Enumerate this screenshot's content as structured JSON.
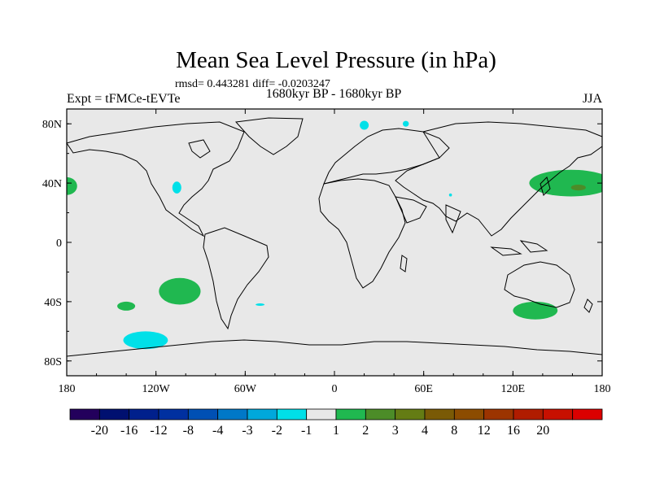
{
  "chart_data": {
    "type": "heatmap",
    "title": "Mean Sea Level Pressure (in hPa)",
    "stats_line": "rmsd= 0.443281 diff= -0.0203247",
    "subtitle": "1680kyr BP - 1680kyr BP",
    "left_label": "Expt = tFMCe-tEVTe",
    "right_label": "JJA",
    "xlim": [
      -180,
      180
    ],
    "ylim": [
      -90,
      90
    ],
    "x_ticks": [
      {
        "value": -180,
        "label": "180"
      },
      {
        "value": -120,
        "label": "120W"
      },
      {
        "value": -60,
        "label": "60W"
      },
      {
        "value": 0,
        "label": "0"
      },
      {
        "value": 60,
        "label": "60E"
      },
      {
        "value": 120,
        "label": "120E"
      },
      {
        "value": 180,
        "label": "180"
      }
    ],
    "y_ticks": [
      {
        "value": 80,
        "label": "80N"
      },
      {
        "value": 40,
        "label": "40N"
      },
      {
        "value": 0,
        "label": "0"
      },
      {
        "value": -40,
        "label": "40S"
      },
      {
        "value": -80,
        "label": "80S"
      }
    ],
    "colorbar": {
      "colors": [
        "#23005c",
        "#001070",
        "#00208c",
        "#0030a0",
        "#0050b4",
        "#0078c8",
        "#00a8dc",
        "#00e0e8",
        "#e8e8e8",
        "#20b850",
        "#4c8c28",
        "#647c14",
        "#7a5a06",
        "#8c4c00",
        "#9c3400",
        "#b01c00",
        "#c81000",
        "#dc0000"
      ],
      "labels": [
        "-20",
        "-16",
        "-12",
        "-8",
        "-4",
        "-3",
        "-2",
        "-1",
        "1",
        "2",
        "3",
        "4",
        "8",
        "12",
        "16",
        "20"
      ],
      "label_gaps": [
        1,
        2,
        3,
        4,
        5,
        6,
        7,
        8,
        9,
        10,
        11,
        12,
        13,
        14,
        15,
        16
      ]
    },
    "regions": [
      {
        "name": "north-pacific-positive",
        "level": "2",
        "color": "#20b850",
        "center": [
          159,
          40
        ],
        "radius": [
          28,
          9
        ]
      },
      {
        "name": "north-pacific-core",
        "level": "3",
        "color": "#4c8c28",
        "center": [
          164,
          37
        ],
        "radius": [
          5,
          2
        ]
      },
      {
        "name": "dateline-west-positive",
        "level": "2",
        "color": "#20b850",
        "center": [
          -180,
          38
        ],
        "radius": [
          7,
          6
        ]
      },
      {
        "name": "south-pacific-positive",
        "level": "2",
        "color": "#20b850",
        "center": [
          -104,
          -33
        ],
        "radius": [
          14,
          9
        ]
      },
      {
        "name": "small-south-pacific-positive",
        "level": "2",
        "color": "#20b850",
        "center": [
          -140,
          -43
        ],
        "radius": [
          6,
          3
        ]
      },
      {
        "name": "south-indian-positive",
        "level": "2",
        "color": "#20b850",
        "center": [
          135,
          -46
        ],
        "radius": [
          15,
          6
        ]
      },
      {
        "name": "southern-ocean-negative",
        "level": "-1",
        "color": "#00e0e8",
        "center": [
          -127,
          -66
        ],
        "radius": [
          15,
          6
        ]
      },
      {
        "name": "north-america-negative",
        "level": "-1",
        "color": "#00e0e8",
        "center": [
          -106,
          37
        ],
        "radius": [
          3,
          4
        ]
      },
      {
        "name": "svalbard-negative",
        "level": "-1",
        "color": "#00e0e8",
        "center": [
          20,
          79
        ],
        "radius": [
          3,
          3
        ]
      },
      {
        "name": "novaya-zemlya-negative",
        "level": "-1",
        "color": "#00e0e8",
        "center": [
          48,
          80
        ],
        "radius": [
          2,
          2
        ]
      },
      {
        "name": "south-atlantic-negative",
        "level": "-1",
        "color": "#00e0e8",
        "center": [
          -50,
          -42
        ],
        "radius": [
          3,
          0.8
        ]
      },
      {
        "name": "arabian-sea-negative",
        "level": "-1",
        "color": "#00e0e8",
        "center": [
          78,
          32
        ],
        "radius": [
          1,
          1
        ]
      }
    ]
  }
}
